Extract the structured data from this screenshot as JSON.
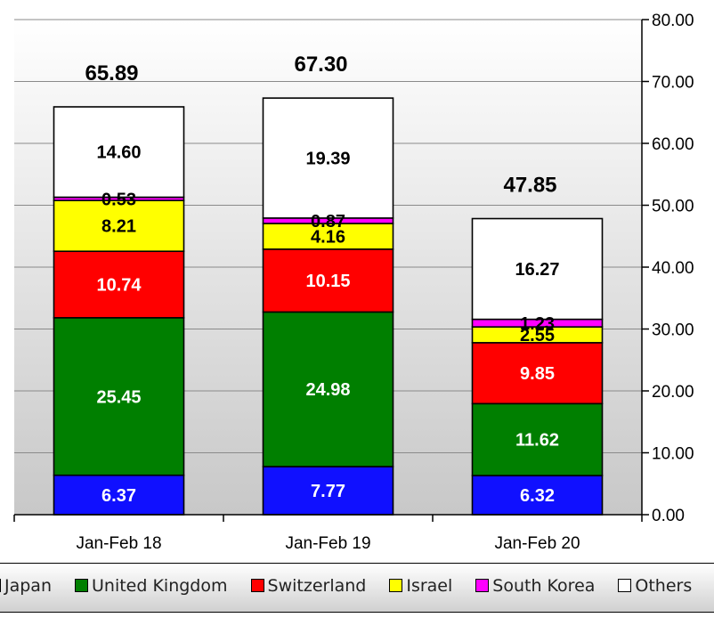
{
  "chart_data": {
    "type": "bar",
    "stacked": true,
    "categories": [
      "Jan-Feb 18",
      "Jan-Feb 19",
      "Jan-Feb 20"
    ],
    "series": [
      {
        "name": "Japan",
        "color": "#1010ff",
        "values": [
          6.37,
          7.77,
          6.32
        ]
      },
      {
        "name": "United Kingdom",
        "color": "#007f00",
        "values": [
          25.45,
          24.98,
          11.62
        ]
      },
      {
        "name": "Switzerland",
        "color": "#ff0000",
        "values": [
          10.74,
          10.15,
          9.85
        ]
      },
      {
        "name": "Israel",
        "color": "#ffff00",
        "values": [
          8.21,
          4.16,
          2.55
        ]
      },
      {
        "name": "South Korea",
        "color": "#ff00ff",
        "values": [
          0.53,
          0.87,
          1.23
        ]
      },
      {
        "name": "Others",
        "color": "#ffffff",
        "values": [
          14.6,
          19.39,
          16.27
        ]
      }
    ],
    "value_labels": [
      [
        "6.37",
        "25.45",
        "10.74",
        "8.21",
        "0.53",
        "14.60"
      ],
      [
        "7.77",
        "24.98",
        "10.15",
        "4.16",
        "0.87",
        "19.39"
      ],
      [
        "6.32",
        "11.62",
        "9.85",
        "2.55",
        "1.23",
        "16.27"
      ]
    ],
    "totals": [
      "65.89",
      "67.30",
      "47.85"
    ],
    "ylim": [
      0,
      80
    ],
    "yticks": [
      "0.00",
      "10.00",
      "20.00",
      "30.00",
      "40.00",
      "50.00",
      "60.00",
      "70.00",
      "80.00"
    ],
    "y_axis_side": "right",
    "legend_position": "bottom",
    "legend_labels": [
      "Japan",
      "United Kingdom",
      "Switzerland",
      "Israel",
      "South Korea",
      "Others"
    ],
    "xlabel": "",
    "ylabel": "",
    "title": ""
  }
}
